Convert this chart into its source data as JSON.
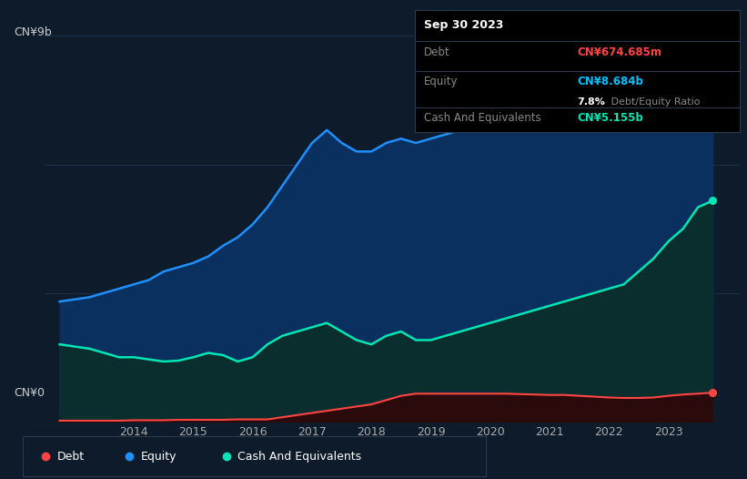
{
  "bg_color": "#0d1b2a",
  "plot_bg_color": "#0d1b2a",
  "grid_color": "#1e3048",
  "ylabel_cn9b": "CN¥9b",
  "ylabel_cn0": "CN¥0",
  "ylim": [
    0,
    9.5
  ],
  "xlim_start": 2012.5,
  "xlim_end": 2024.2,
  "equity_color": "#1e90ff",
  "equity_fill_color": "#0a3060",
  "cash_color": "#00e5b4",
  "cash_fill_color": "#0a2e2e",
  "debt_color": "#ff4444",
  "debt_fill_color": "#2a0a0a",
  "tooltip_bg": "#000000",
  "tooltip_border": "#2a3a4a",
  "tooltip_title": "Sep 30 2023",
  "tooltip_debt_label": "Debt",
  "tooltip_debt_value": "CN¥674.685m",
  "tooltip_equity_label": "Equity",
  "tooltip_equity_value": "CN¥8.684b",
  "tooltip_ratio_bold": "7.8%",
  "tooltip_ratio_rest": " Debt/Equity Ratio",
  "tooltip_cash_label": "Cash And Equivalents",
  "tooltip_cash_value": "CN¥5.155b",
  "equity_x": [
    2012.75,
    2013.0,
    2013.25,
    2013.5,
    2013.75,
    2014.0,
    2014.25,
    2014.5,
    2014.75,
    2015.0,
    2015.25,
    2015.5,
    2015.75,
    2016.0,
    2016.25,
    2016.5,
    2016.75,
    2017.0,
    2017.25,
    2017.5,
    2017.75,
    2018.0,
    2018.25,
    2018.5,
    2018.75,
    2019.0,
    2019.25,
    2019.5,
    2019.75,
    2020.0,
    2020.25,
    2020.5,
    2020.75,
    2021.0,
    2021.25,
    2021.5,
    2021.75,
    2022.0,
    2022.25,
    2022.5,
    2022.75,
    2023.0,
    2023.25,
    2023.5,
    2023.75
  ],
  "equity_y": [
    2.8,
    2.85,
    2.9,
    3.0,
    3.1,
    3.2,
    3.3,
    3.5,
    3.6,
    3.7,
    3.85,
    4.1,
    4.3,
    4.6,
    5.0,
    5.5,
    6.0,
    6.5,
    6.8,
    6.5,
    6.3,
    6.3,
    6.5,
    6.6,
    6.5,
    6.6,
    6.7,
    6.8,
    6.9,
    7.0,
    7.0,
    7.1,
    7.2,
    7.2,
    7.1,
    7.2,
    7.3,
    7.4,
    7.5,
    7.6,
    7.8,
    8.0,
    8.2,
    8.5,
    8.684
  ],
  "cash_x": [
    2012.75,
    2013.0,
    2013.25,
    2013.5,
    2013.75,
    2014.0,
    2014.25,
    2014.5,
    2014.75,
    2015.0,
    2015.25,
    2015.5,
    2015.75,
    2016.0,
    2016.25,
    2016.5,
    2016.75,
    2017.0,
    2017.25,
    2017.5,
    2017.75,
    2018.0,
    2018.25,
    2018.5,
    2018.75,
    2019.0,
    2019.25,
    2019.5,
    2019.75,
    2020.0,
    2020.25,
    2020.5,
    2020.75,
    2021.0,
    2021.25,
    2021.5,
    2021.75,
    2022.0,
    2022.25,
    2022.5,
    2022.75,
    2023.0,
    2023.25,
    2023.5,
    2023.75
  ],
  "cash_y": [
    1.8,
    1.75,
    1.7,
    1.6,
    1.5,
    1.5,
    1.45,
    1.4,
    1.42,
    1.5,
    1.6,
    1.55,
    1.4,
    1.5,
    1.8,
    2.0,
    2.1,
    2.2,
    2.3,
    2.1,
    1.9,
    1.8,
    2.0,
    2.1,
    1.9,
    1.9,
    2.0,
    2.1,
    2.2,
    2.3,
    2.4,
    2.5,
    2.6,
    2.7,
    2.8,
    2.9,
    3.0,
    3.1,
    3.2,
    3.5,
    3.8,
    4.2,
    4.5,
    5.0,
    5.155
  ],
  "debt_x": [
    2012.75,
    2013.0,
    2013.25,
    2013.5,
    2013.75,
    2014.0,
    2014.25,
    2014.5,
    2014.75,
    2015.0,
    2015.25,
    2015.5,
    2015.75,
    2016.0,
    2016.25,
    2016.5,
    2016.75,
    2017.0,
    2017.25,
    2017.5,
    2017.75,
    2018.0,
    2018.25,
    2018.5,
    2018.75,
    2019.0,
    2019.25,
    2019.5,
    2019.75,
    2020.0,
    2020.25,
    2020.5,
    2020.75,
    2021.0,
    2021.25,
    2021.5,
    2021.75,
    2022.0,
    2022.25,
    2022.5,
    2022.75,
    2023.0,
    2023.25,
    2023.5,
    2023.75
  ],
  "debt_y": [
    0.02,
    0.02,
    0.02,
    0.02,
    0.02,
    0.03,
    0.03,
    0.03,
    0.04,
    0.04,
    0.04,
    0.04,
    0.05,
    0.05,
    0.05,
    0.1,
    0.15,
    0.2,
    0.25,
    0.3,
    0.35,
    0.4,
    0.5,
    0.6,
    0.65,
    0.65,
    0.65,
    0.65,
    0.65,
    0.65,
    0.65,
    0.64,
    0.63,
    0.62,
    0.62,
    0.6,
    0.58,
    0.56,
    0.55,
    0.55,
    0.56,
    0.6,
    0.63,
    0.65,
    0.6748
  ],
  "legend_items": [
    "Debt",
    "Equity",
    "Cash And Equivalents"
  ],
  "legend_colors": [
    "#ff4444",
    "#1e90ff",
    "#00e5b4"
  ],
  "x_tick_vals": [
    2014,
    2015,
    2016,
    2017,
    2018,
    2019,
    2020,
    2021,
    2022,
    2023
  ],
  "x_tick_labels": [
    "2014",
    "2015",
    "2016",
    "2017",
    "2018",
    "2019",
    "2020",
    "2021",
    "2022",
    "2023"
  ]
}
